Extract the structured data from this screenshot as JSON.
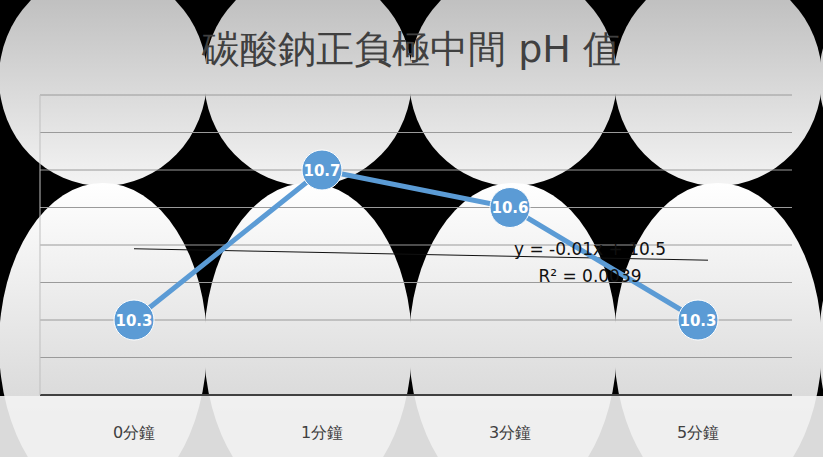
{
  "chart_data": {
    "type": "line",
    "title": "碳酸鈉正負極中間 pH 值",
    "categories": [
      "0分鐘",
      "1分鐘",
      "3分鐘",
      "5分鐘"
    ],
    "values": [
      10.3,
      10.7,
      10.6,
      10.3
    ],
    "color": "#5b9bd5",
    "marker": "circle",
    "data_labels": true,
    "ylim": [
      10.1,
      10.9
    ],
    "yticks": [
      10.1,
      10.2,
      10.3,
      10.4,
      10.5,
      10.6,
      10.7,
      10.8,
      10.9
    ],
    "grid": true,
    "tick_labels": "x",
    "trendline": {
      "slope": -0.01,
      "intercept": 10.5,
      "equation": "y = -0.01x + 10.5",
      "r_squared": "R² = 0.0039"
    }
  }
}
